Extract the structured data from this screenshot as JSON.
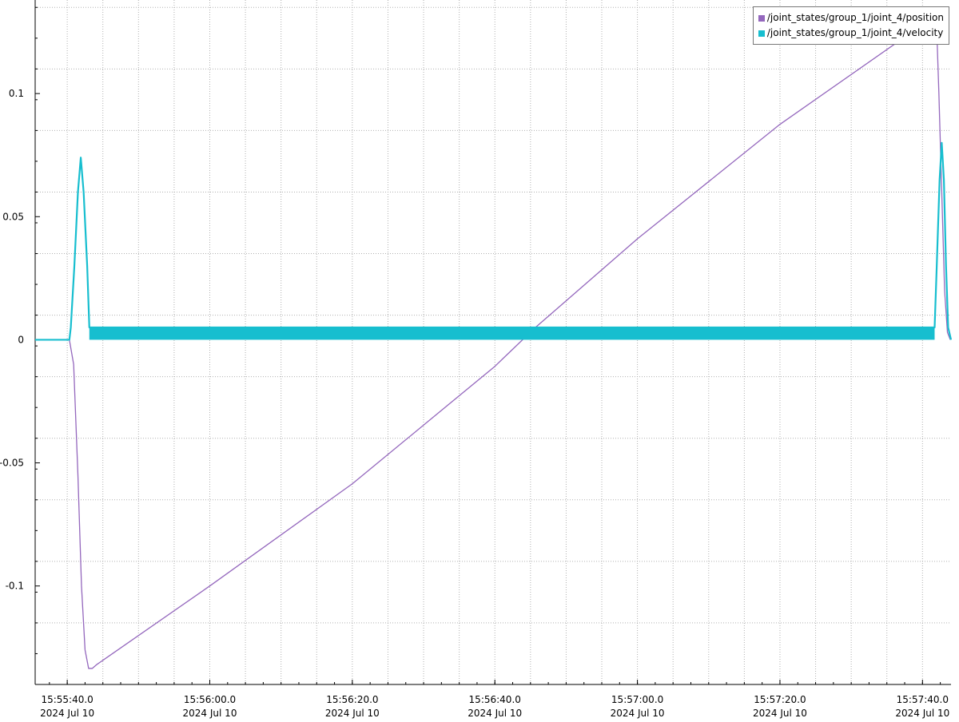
{
  "chart_data": {
    "type": "line",
    "title": "",
    "xlabel": "",
    "ylabel": "",
    "xlim": [
      "15:55:35.5",
      "15:57:44.0"
    ],
    "ylim": [
      -0.14,
      0.138
    ],
    "grid": true,
    "legend_position": "top-right",
    "y_ticks": [
      {
        "value": 0.1,
        "label": "0.1"
      },
      {
        "value": 0.05,
        "label": "0.05"
      },
      {
        "value": 0,
        "label": "0"
      },
      {
        "value": -0.05,
        "label": "-0.05"
      },
      {
        "value": -0.1,
        "label": "-0.1"
      }
    ],
    "x_ticks": [
      {
        "time": "15:55:40.0",
        "label": "15:55:40.0",
        "date": "2024 Jul 10"
      },
      {
        "time": "15:56:00.0",
        "label": "15:56:00.0",
        "date": "2024 Jul 10"
      },
      {
        "time": "15:56:20.0",
        "label": "15:56:20.0",
        "date": "2024 Jul 10"
      },
      {
        "time": "15:56:40.0",
        "label": "15:56:40.0",
        "date": "2024 Jul 10"
      },
      {
        "time": "15:57:00.0",
        "label": "15:57:00.0",
        "date": "2024 Jul 10"
      },
      {
        "time": "15:57:20.0",
        "label": "15:57:20.0",
        "date": "2024 Jul 10"
      },
      {
        "time": "15:57:40.0",
        "label": "15:57:40.0",
        "date": "2024 Jul 10"
      }
    ],
    "series": [
      {
        "name": "/joint_states/group_1/joint_4/position",
        "color": "#9467bd",
        "points": [
          {
            "t": "15:55:35.5",
            "y": 0
          },
          {
            "t": "15:55:40.3",
            "y": 0
          },
          {
            "t": "15:55:40.9",
            "y": -0.01
          },
          {
            "t": "15:55:41.5",
            "y": -0.055
          },
          {
            "t": "15:55:42.0",
            "y": -0.1
          },
          {
            "t": "15:55:42.5",
            "y": -0.126
          },
          {
            "t": "15:55:43.0",
            "y": -0.1335
          },
          {
            "t": "15:55:43.5",
            "y": -0.1335
          },
          {
            "t": "15:55:44.1",
            "y": -0.132
          },
          {
            "t": "15:56:00.0",
            "y": -0.1
          },
          {
            "t": "15:56:20.0",
            "y": -0.0585
          },
          {
            "t": "15:56:40.0",
            "y": -0.0108
          },
          {
            "t": "15:56:45.5",
            "y": 0.0045
          },
          {
            "t": "15:57:00.0",
            "y": 0.041
          },
          {
            "t": "15:57:20.0",
            "y": 0.0875
          },
          {
            "t": "15:57:40.0",
            "y": 0.128
          },
          {
            "t": "15:57:41.5",
            "y": 0.13
          },
          {
            "t": "15:57:42.0",
            "y": 0.126
          },
          {
            "t": "15:57:42.3",
            "y": 0.1
          },
          {
            "t": "15:57:42.7",
            "y": 0.06
          },
          {
            "t": "15:57:43.1",
            "y": 0.02
          },
          {
            "t": "15:57:43.5",
            "y": 0.003
          },
          {
            "t": "15:57:43.9",
            "y": 0
          }
        ]
      },
      {
        "name": "/joint_states/group_1/joint_4/velocity",
        "color": "#17becf",
        "points": [
          {
            "t": "15:55:35.5",
            "y": 0
          },
          {
            "t": "15:55:40.3",
            "y": 0
          },
          {
            "t": "15:55:40.5",
            "y": 0.005
          },
          {
            "t": "15:55:41.0",
            "y": 0.03
          },
          {
            "t": "15:55:41.5",
            "y": 0.06
          },
          {
            "t": "15:55:41.9",
            "y": 0.074
          },
          {
            "t": "15:55:42.3",
            "y": 0.06
          },
          {
            "t": "15:55:42.8",
            "y": 0.03
          },
          {
            "t": "15:55:43.1",
            "y": 0.005
          },
          {
            "t": "15:57:41.7",
            "y": 0.005
          },
          {
            "t": "15:57:42.0",
            "y": 0.03
          },
          {
            "t": "15:57:42.4",
            "y": 0.065
          },
          {
            "t": "15:57:42.7",
            "y": 0.08
          },
          {
            "t": "15:57:43.0",
            "y": 0.065
          },
          {
            "t": "15:57:43.3",
            "y": 0.03
          },
          {
            "t": "15:57:43.6",
            "y": 0.005
          },
          {
            "t": "15:57:44.0",
            "y": 0
          }
        ],
        "noise_band": {
          "from": "15:55:43.1",
          "to": "15:57:41.7",
          "y_min": 0,
          "y_max": 0.005
        }
      }
    ]
  }
}
